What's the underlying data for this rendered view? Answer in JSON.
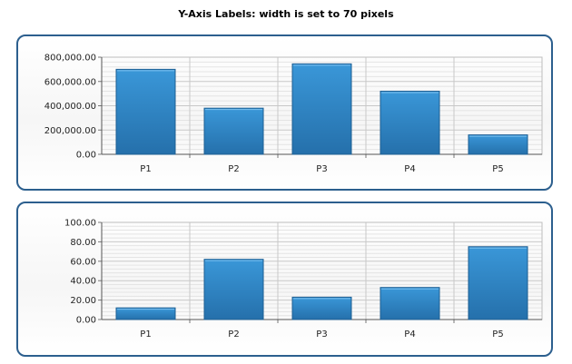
{
  "title": "Y-Axis Labels: width is set to 70 pixels",
  "colors": {
    "bar": "#2f86c6",
    "bar_dark": "#1e5f93",
    "border": "#2c5f8e",
    "grid": "#c8c8c8"
  },
  "chart_data": [
    {
      "type": "bar",
      "categories": [
        "P1",
        "P2",
        "P3",
        "P4",
        "P5"
      ],
      "values": [
        700000,
        380000,
        745000,
        520000,
        160000
      ],
      "ylim": [
        0,
        800000
      ],
      "yticks": [
        "0.00",
        "200,000.00",
        "400,000.00",
        "600,000.00",
        "800,000.00"
      ],
      "grid": true
    },
    {
      "type": "bar",
      "categories": [
        "P1",
        "P2",
        "P3",
        "P4",
        "P5"
      ],
      "values": [
        12,
        62,
        23,
        33,
        75
      ],
      "ylim": [
        0,
        100
      ],
      "yticks": [
        "0.00",
        "20.00",
        "40.00",
        "60.00",
        "80.00",
        "100.00"
      ],
      "grid": true
    }
  ]
}
